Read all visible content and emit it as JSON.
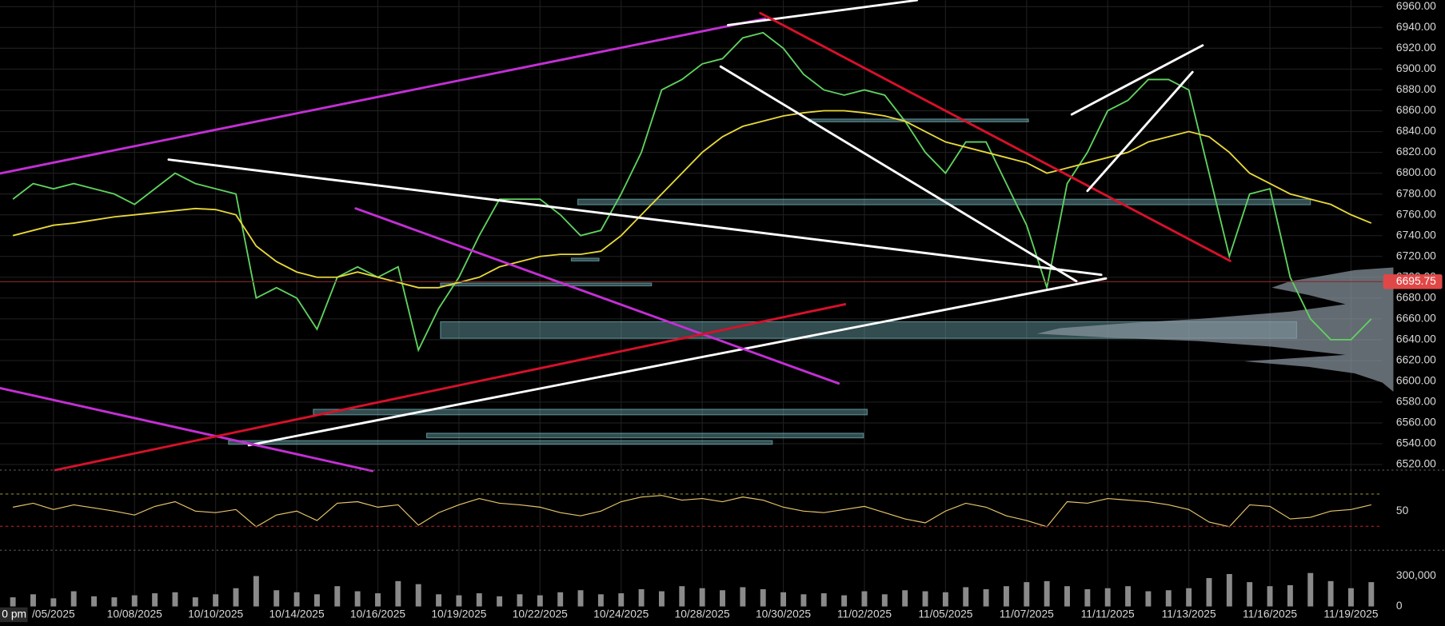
{
  "chart_data": [
    {
      "type": "line",
      "categories": [
        null,
        null,
        "/05/2025",
        null,
        null,
        null,
        "10/08/2025",
        null,
        null,
        null,
        "10/10/2025",
        null,
        null,
        null,
        "10/14/2025",
        null,
        null,
        null,
        "10/16/2025",
        null,
        null,
        null,
        "10/19/2025",
        null,
        null,
        null,
        "10/22/2025",
        null,
        null,
        null,
        "10/24/2025",
        null,
        null,
        null,
        "10/28/2025",
        null,
        null,
        null,
        "10/30/2025",
        null,
        null,
        null,
        "11/02/2025",
        null,
        null,
        null,
        "11/05/2025",
        null,
        null,
        null,
        "11/07/2025",
        null,
        null,
        null,
        "11/11/2025",
        null,
        null,
        null,
        "11/13/2025",
        null,
        null,
        null,
        "11/16/2025",
        null,
        null,
        null,
        "11/19/2025",
        null
      ],
      "series": [
        {
          "color": "#5fd35f",
          "values": [
            6775,
            6790,
            6785,
            6790,
            6785,
            6780,
            6770,
            6785,
            6800,
            6790,
            6785,
            6780,
            6680,
            6690,
            6680,
            6650,
            6700,
            6710,
            6700,
            6710,
            6630,
            6670,
            6700,
            6740,
            6775,
            6775,
            6775,
            6760,
            6740,
            6745,
            6780,
            6820,
            6880,
            6890,
            6905,
            6910,
            6930,
            6935,
            6920,
            6895,
            6880,
            6875,
            6880,
            6875,
            6850,
            6820,
            6800,
            6830,
            6830,
            6790,
            6750,
            6690,
            6790,
            6820,
            6860,
            6870,
            6890,
            6890,
            6880,
            6800,
            6720,
            6780,
            6785,
            6700,
            6660,
            6640,
            6640,
            6660
          ]
        },
        {
          "color": "#e8d83a",
          "values": [
            6740,
            6745,
            6750,
            6752,
            6755,
            6758,
            6760,
            6762,
            6764,
            6766,
            6765,
            6760,
            6730,
            6715,
            6705,
            6700,
            6700,
            6705,
            6700,
            6695,
            6690,
            6690,
            6695,
            6700,
            6710,
            6715,
            6720,
            6722,
            6722,
            6725,
            6740,
            6760,
            6780,
            6800,
            6820,
            6835,
            6845,
            6850,
            6855,
            6858,
            6860,
            6860,
            6858,
            6855,
            6850,
            6840,
            6830,
            6825,
            6820,
            6815,
            6810,
            6800,
            6805,
            6810,
            6815,
            6820,
            6830,
            6835,
            6840,
            6835,
            6820,
            6800,
            6790,
            6780,
            6775,
            6770,
            6760,
            6752
          ]
        }
      ],
      "ylim": [
        6520,
        6960
      ],
      "yticks": [
        {
          "value": 6520,
          "label": "6520.00"
        },
        {
          "value": 6540,
          "label": "6540.00"
        },
        {
          "value": 6560,
          "label": "6560.00"
        },
        {
          "value": 6580,
          "label": "6580.00"
        },
        {
          "value": 6600,
          "label": "6600.00"
        },
        {
          "value": 6620,
          "label": "6620.00"
        },
        {
          "value": 6640,
          "label": "6640.00"
        },
        {
          "value": 6660,
          "label": "6660.00"
        },
        {
          "value": 6680,
          "label": "6680.00"
        },
        {
          "value": 6700,
          "label": "6700.00"
        },
        {
          "value": 6720,
          "label": "6720.00"
        },
        {
          "value": 6740,
          "label": "6740.00"
        },
        {
          "value": 6760,
          "label": "6760.00"
        },
        {
          "value": 6780,
          "label": "6780.00"
        },
        {
          "value": 6800,
          "label": "6800.00"
        },
        {
          "value": 6820,
          "label": "6820.00"
        },
        {
          "value": 6840,
          "label": "6840.00"
        },
        {
          "value": 6860,
          "label": "6860.00"
        },
        {
          "value": 6880,
          "label": "6880.00"
        },
        {
          "value": 6900,
          "label": "6900.00"
        },
        {
          "value": 6920,
          "label": "6920.00"
        },
        {
          "value": 6940,
          "label": "6940.00"
        },
        {
          "value": 6960,
          "label": "6960.00"
        }
      ],
      "last_price": 6695.75,
      "time_label": "0 pm",
      "grid": true
    },
    {
      "type": "line",
      "color": "#e8c66a",
      "values": [
        55,
        60,
        52,
        58,
        54,
        50,
        45,
        56,
        62,
        50,
        48,
        52,
        30,
        45,
        50,
        38,
        60,
        62,
        55,
        58,
        32,
        48,
        58,
        66,
        60,
        58,
        55,
        48,
        44,
        50,
        62,
        68,
        70,
        64,
        66,
        62,
        68,
        64,
        55,
        50,
        48,
        52,
        56,
        48,
        40,
        35,
        50,
        60,
        55,
        44,
        38,
        30,
        62,
        60,
        66,
        64,
        62,
        58,
        52,
        36,
        30,
        58,
        56,
        40,
        42,
        50,
        52,
        58
      ],
      "ylim": [
        0,
        100
      ],
      "yticks": [
        50
      ]
    },
    {
      "type": "bar",
      "color": "#8a8a8a",
      "values": [
        90000,
        120000,
        80000,
        150000,
        100000,
        90000,
        110000,
        130000,
        140000,
        90000,
        120000,
        180000,
        300000,
        160000,
        140000,
        120000,
        200000,
        150000,
        130000,
        250000,
        220000,
        120000,
        110000,
        130000,
        100000,
        120000,
        110000,
        140000,
        160000,
        120000,
        130000,
        170000,
        150000,
        200000,
        180000,
        160000,
        190000,
        170000,
        140000,
        120000,
        130000,
        110000,
        150000,
        120000,
        160000,
        150000,
        140000,
        190000,
        170000,
        200000,
        240000,
        250000,
        200000,
        170000,
        180000,
        200000,
        150000,
        160000,
        180000,
        280000,
        320000,
        240000,
        200000,
        210000,
        330000,
        250000,
        180000,
        240000
      ],
      "ylim": [
        0,
        500000
      ],
      "yticks": [
        0,
        {
          "value": 300000,
          "label": "300,000"
        }
      ]
    }
  ]
}
